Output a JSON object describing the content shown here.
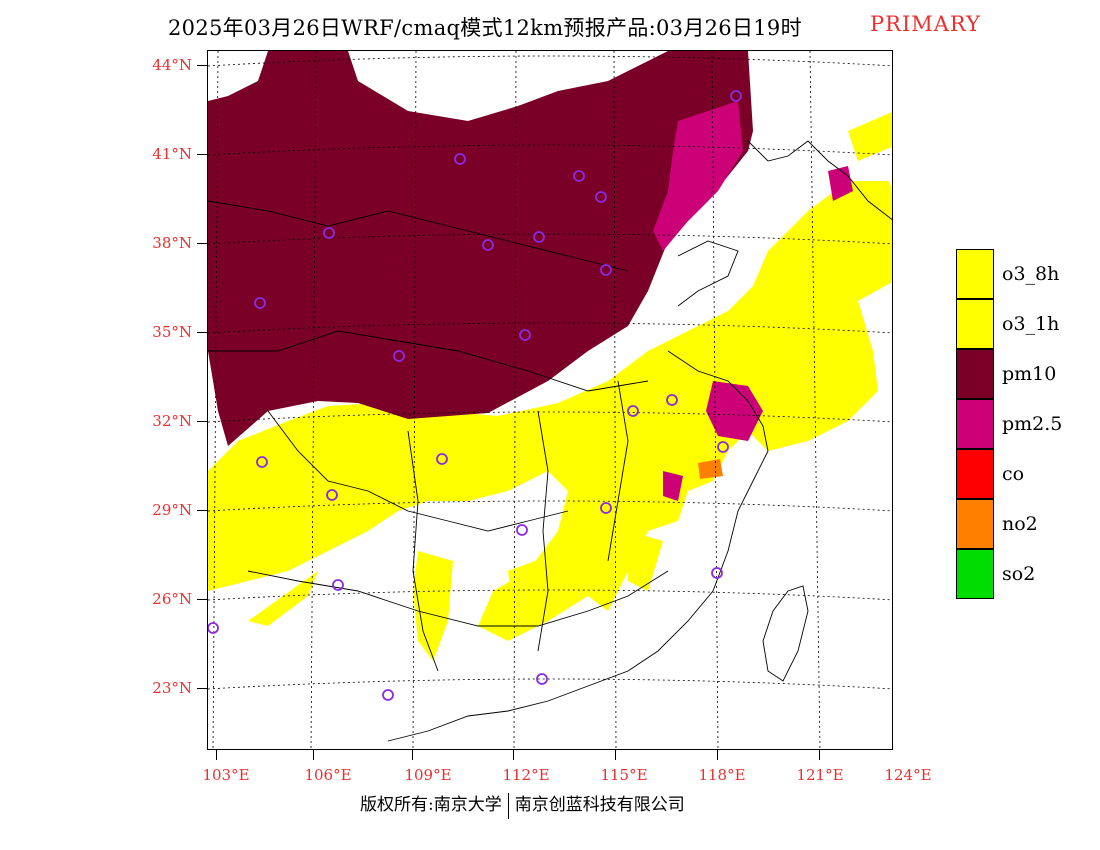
{
  "header": {
    "title": "2025年03月26日WRF/cmaq模式12km预报产品:03月26日19时",
    "flag": "PRIMARY"
  },
  "colors": {
    "o3_8h": "#ffff00",
    "o3_1h": "#ffff00",
    "pm10": "#7a0028",
    "pm2_5": "#cc0077",
    "co": "#ff0000",
    "no2": "#ff7f00",
    "so2": "#00dd00",
    "station_marker": "#8a2be2",
    "axis_label": "#e8312f"
  },
  "axes": {
    "lat_labels": [
      "44°N",
      "41°N",
      "38°N",
      "35°N",
      "32°N",
      "29°N",
      "26°N",
      "23°N"
    ],
    "lon_labels": [
      "103°E",
      "106°E",
      "109°E",
      "112°E",
      "115°E",
      "118°E",
      "121°E",
      "124°E"
    ]
  },
  "legend": {
    "items": [
      {
        "label": "o3_8h",
        "color": "#ffff00"
      },
      {
        "label": "o3_1h",
        "color": "#ffff00"
      },
      {
        "label": "pm10",
        "color": "#7a0028"
      },
      {
        "label": "pm2.5",
        "color": "#cc0077"
      },
      {
        "label": "co",
        "color": "#ff0000"
      },
      {
        "label": "no2",
        "color": "#ff7f00"
      },
      {
        "label": "so2",
        "color": "#00dd00"
      }
    ]
  },
  "footer": {
    "left": "版权所有:南京大学",
    "right": "南京创蓝科技有限公司"
  }
}
